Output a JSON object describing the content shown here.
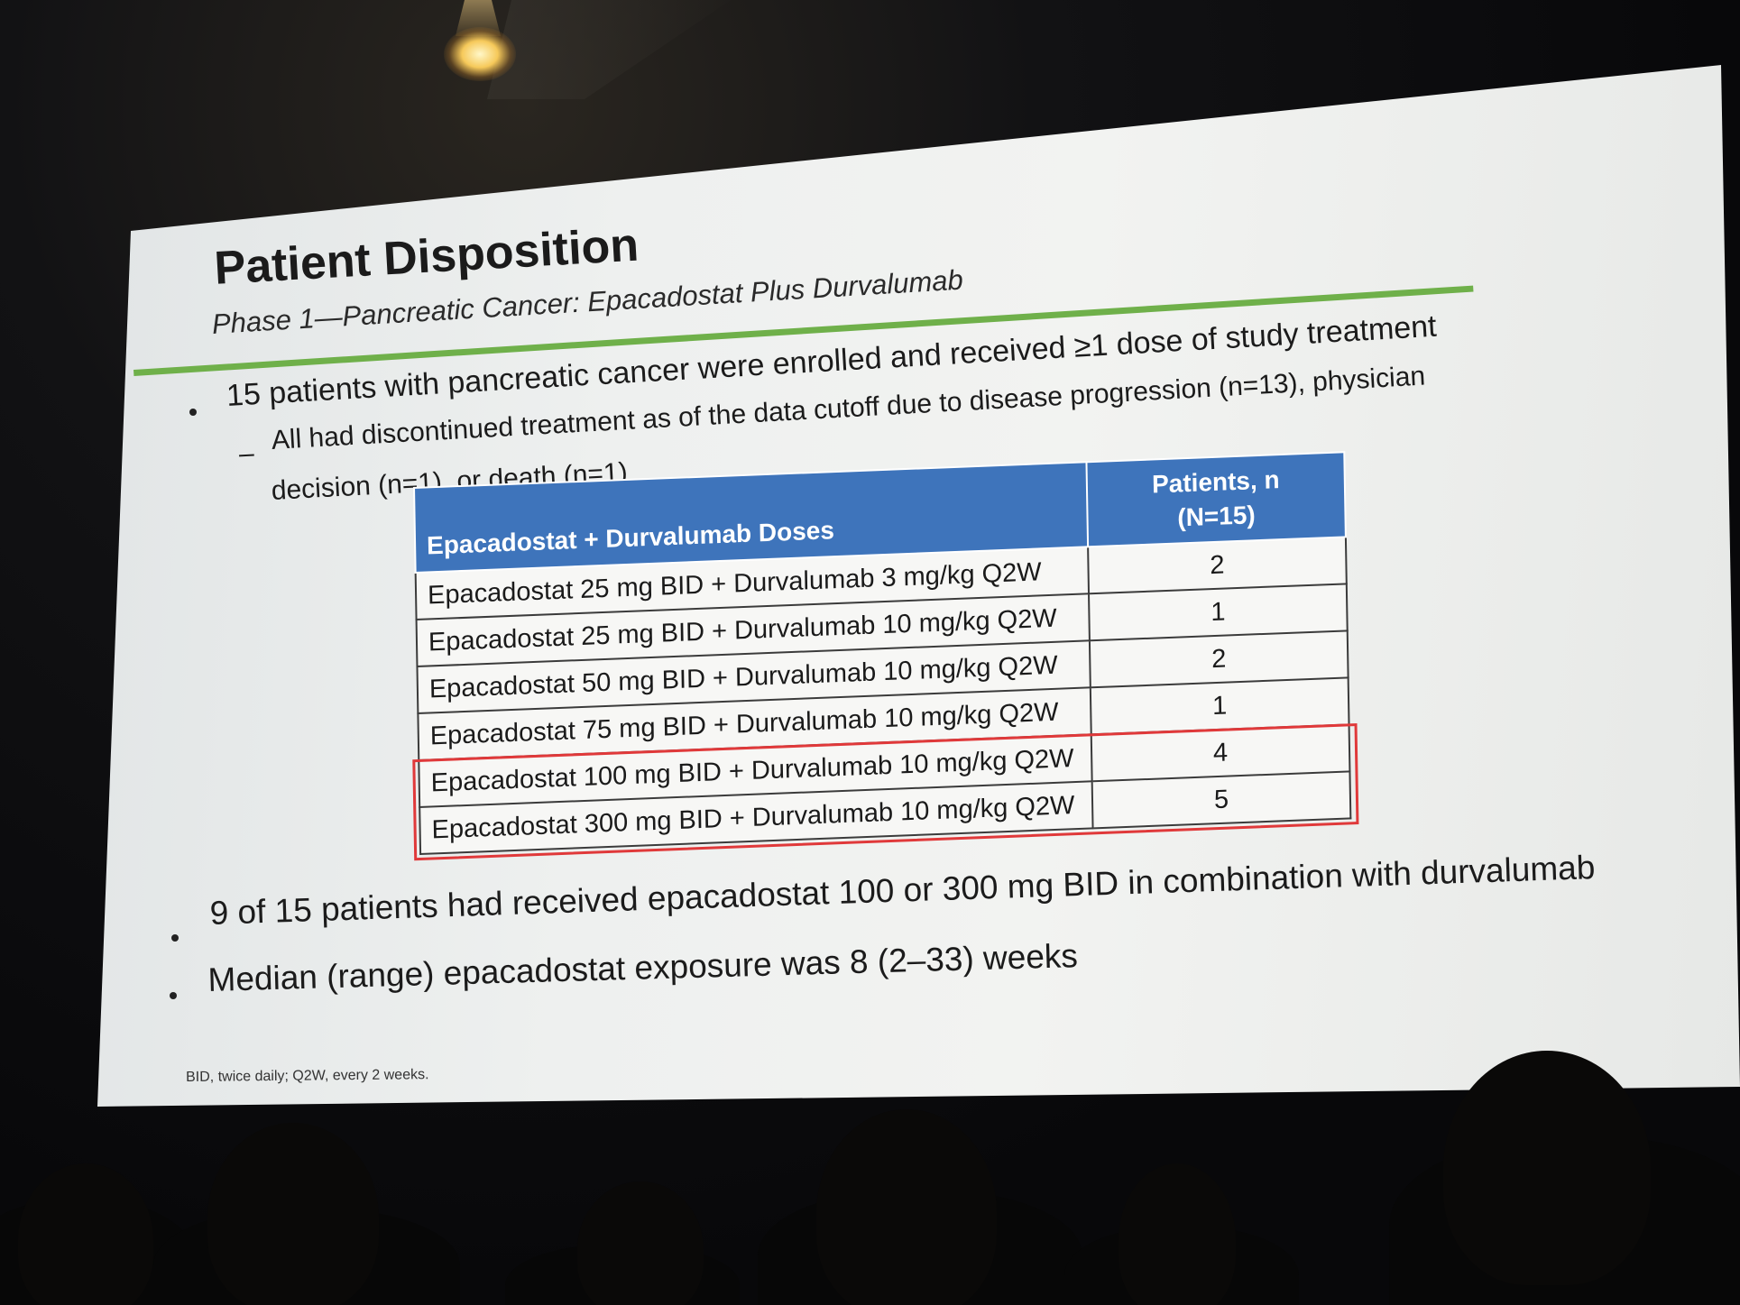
{
  "slide": {
    "title": "Patient Disposition",
    "subtitle": "Phase 1—Pancreatic Cancer: Epacadostat Plus Durvalumab",
    "bullets": [
      {
        "text": "15 patients with pancreatic cancer were enrolled and received ≥1 dose of study treatment",
        "sub": {
          "dash": "–",
          "line1": "All had discontinued treatment as of the data cutoff due to disease progression (n=13), physician",
          "line2": "decision (n=1), or death (n=1)"
        }
      },
      {
        "text": "9 of 15 patients had received epacadostat 100 or 300 mg BID in combination with durvalumab"
      },
      {
        "text": "Median (range) epacadostat exposure was 8 (2–33) weeks"
      }
    ],
    "footnote": "BID, twice daily; Q2W, every 2 weeks.",
    "accent_color": "#6fb04a",
    "table_header_color": "#3e74bb",
    "highlight_color": "#e0393a"
  },
  "table": {
    "headers": {
      "doses": "Epacadostat + Durvalumab Doses",
      "patients_line1": "Patients, n",
      "patients_line2": "(N=15)"
    },
    "rows": [
      {
        "dose": "Epacadostat 25 mg BID + Durvalumab 3 mg/kg Q2W",
        "n": "2"
      },
      {
        "dose": "Epacadostat 25 mg BID + Durvalumab 10 mg/kg Q2W",
        "n": "1"
      },
      {
        "dose": "Epacadostat 50 mg BID + Durvalumab 10 mg/kg Q2W",
        "n": "2"
      },
      {
        "dose": "Epacadostat 75 mg BID + Durvalumab 10 mg/kg Q2W",
        "n": "1"
      },
      {
        "dose": "Epacadostat 100 mg BID + Durvalumab 10 mg/kg Q2W",
        "n": "4"
      },
      {
        "dose": "Epacadostat 300 mg BID + Durvalumab 10 mg/kg Q2W",
        "n": "5"
      }
    ]
  }
}
